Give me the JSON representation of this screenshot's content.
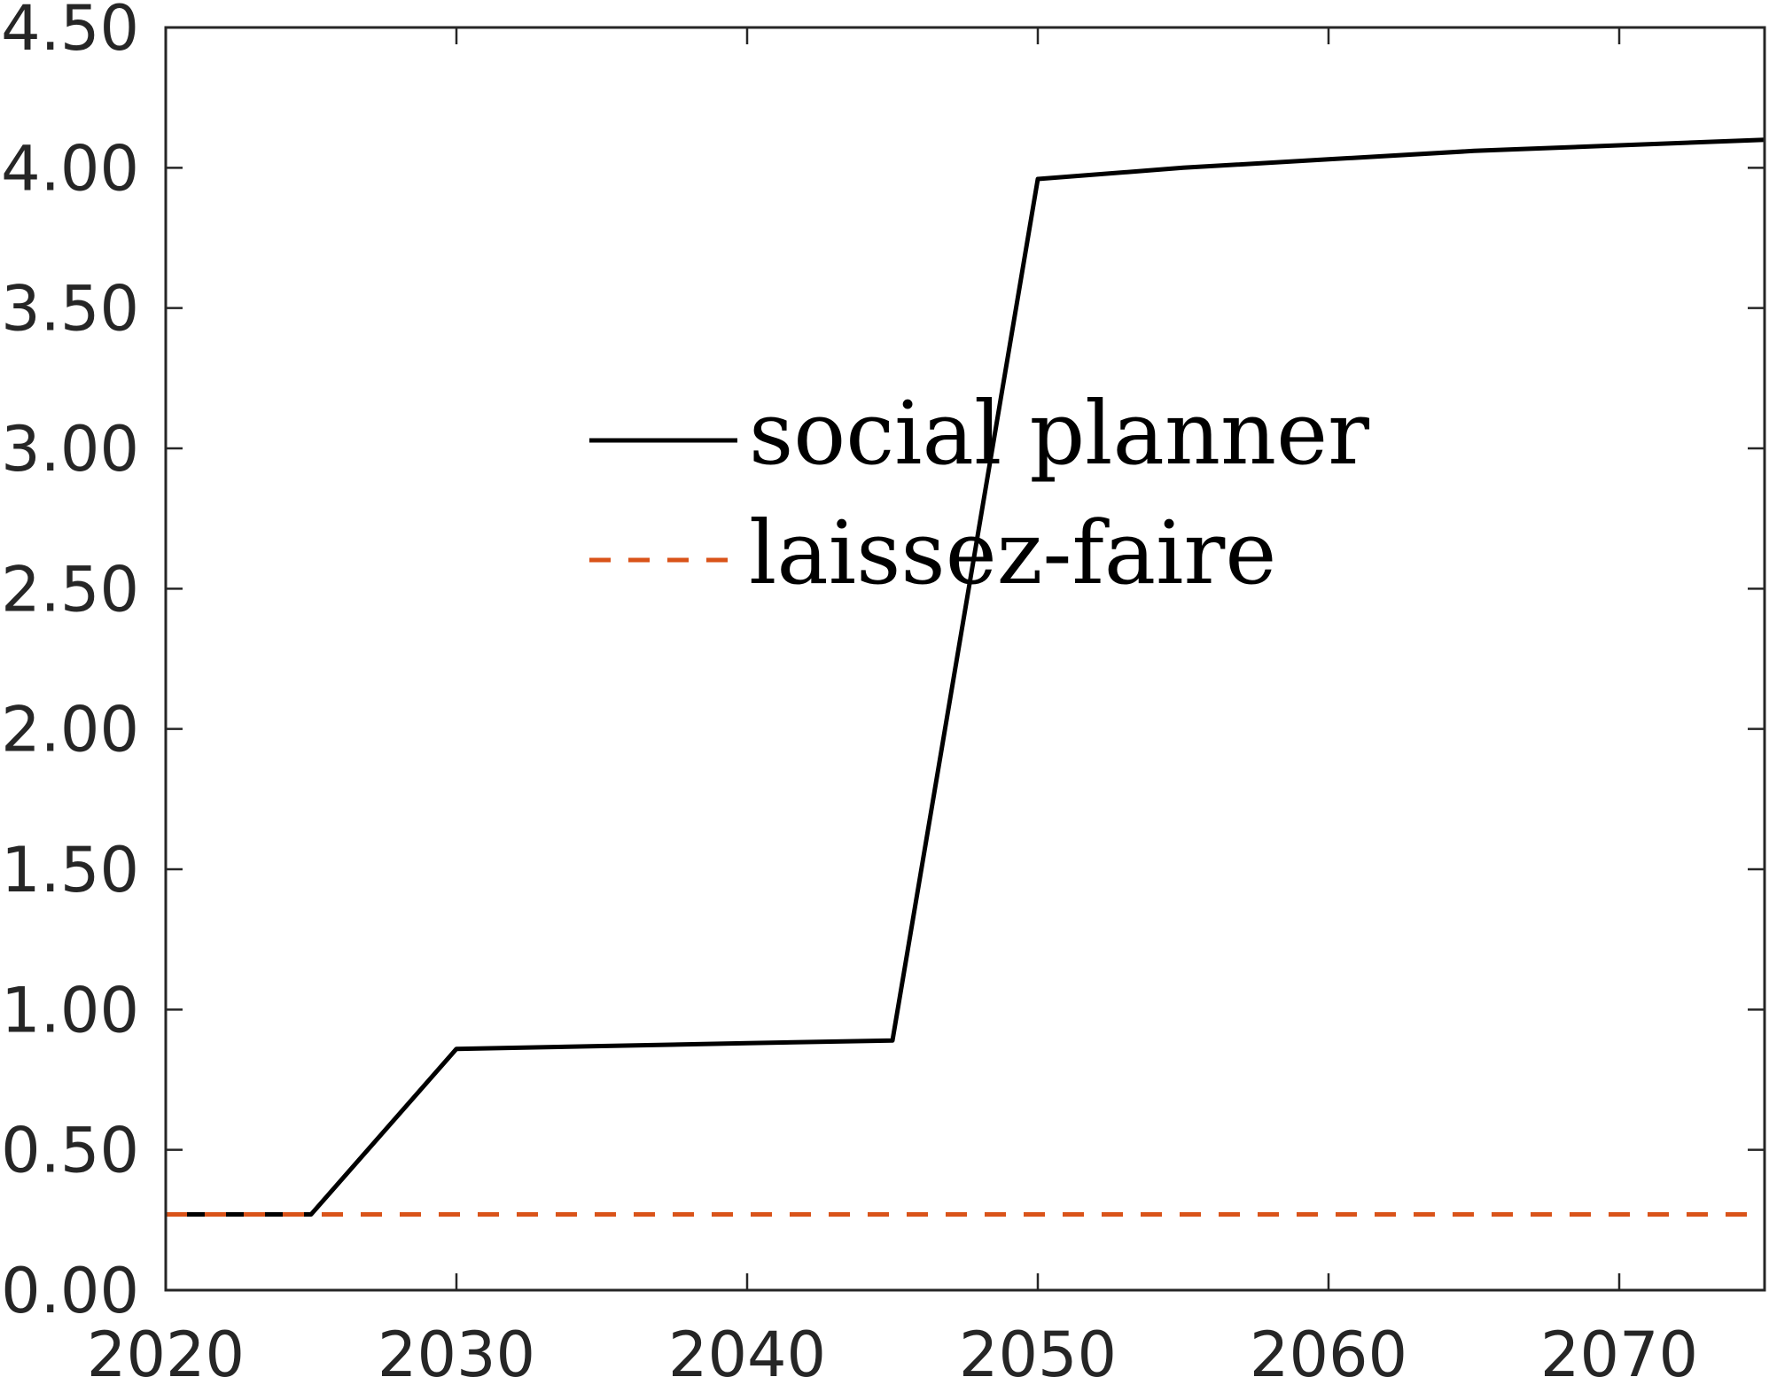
{
  "chart_data": {
    "type": "line",
    "title": "",
    "xlabel": "",
    "ylabel": "",
    "xlim": [
      2020,
      2075
    ],
    "ylim": [
      0,
      4.5
    ],
    "x_ticks": [
      2020,
      2030,
      2040,
      2050,
      2060,
      2070
    ],
    "y_ticks": [
      0,
      0.5,
      1,
      1.5,
      2,
      2.5,
      3,
      3.5,
      4,
      4.5
    ],
    "x_tick_labels": [
      "2020",
      "2030",
      "2040",
      "2050",
      "2060",
      "2070"
    ],
    "y_tick_labels": [
      "0.00",
      "0.50",
      "1.00",
      "1.50",
      "2.00",
      "2.50",
      "3.00",
      "3.50",
      "4.00",
      "4.50"
    ],
    "grid": false,
    "legend_position": "center",
    "series": [
      {
        "name": "social planner",
        "color": "#000000",
        "style": "solid",
        "x": [
          2020,
          2025,
          2030,
          2035,
          2040,
          2045,
          2050,
          2055,
          2060,
          2065,
          2070,
          2075
        ],
        "y": [
          0.27,
          0.27,
          0.86,
          0.87,
          0.88,
          0.89,
          3.96,
          4.0,
          4.03,
          4.06,
          4.08,
          4.1
        ]
      },
      {
        "name": "laissez-faire",
        "color": "#D95319",
        "style": "dashed",
        "x": [
          2020,
          2025,
          2030,
          2035,
          2040,
          2045,
          2050,
          2055,
          2060,
          2065,
          2070,
          2075
        ],
        "y": [
          0.27,
          0.27,
          0.27,
          0.27,
          0.27,
          0.27,
          0.27,
          0.27,
          0.27,
          0.27,
          0.27,
          0.27
        ]
      }
    ]
  }
}
